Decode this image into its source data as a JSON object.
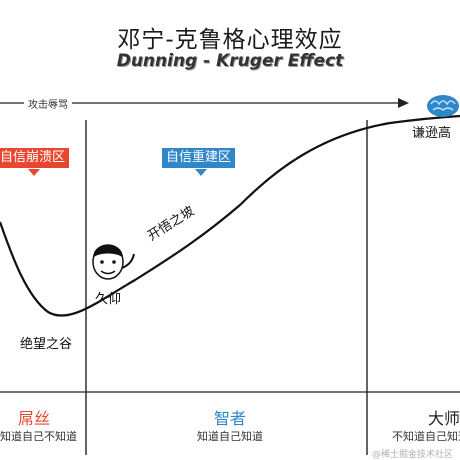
{
  "title": "邓宁-克鲁格心理效应",
  "subtitle": "Dunning - Kruger Effect",
  "axis_label": "攻击辱骂",
  "zones": {
    "collapse": "自信崩溃区",
    "rebuild": "自信重建区"
  },
  "curve_labels": {
    "valley": "绝望之谷",
    "slope": "开悟之坡",
    "plateau": "谦逊高",
    "admire": "久仰"
  },
  "stages": [
    {
      "title": "屌丝",
      "desc": "知道自己不知道",
      "color": "#e8472f"
    },
    {
      "title": "智者",
      "desc": "知道自己知道",
      "color": "#2f86c8"
    },
    {
      "title": "大师",
      "desc": "不知道自己知道",
      "color": "#222222"
    }
  ],
  "watermark": "@稀土掘金技术社区",
  "colors": {
    "red": "#e8472f",
    "blue": "#2f86c8",
    "curve": "#111111",
    "brain": "#2f86c8"
  },
  "icons": [
    "brain-icon",
    "meme-face-icon",
    "arrow-right-icon"
  ]
}
